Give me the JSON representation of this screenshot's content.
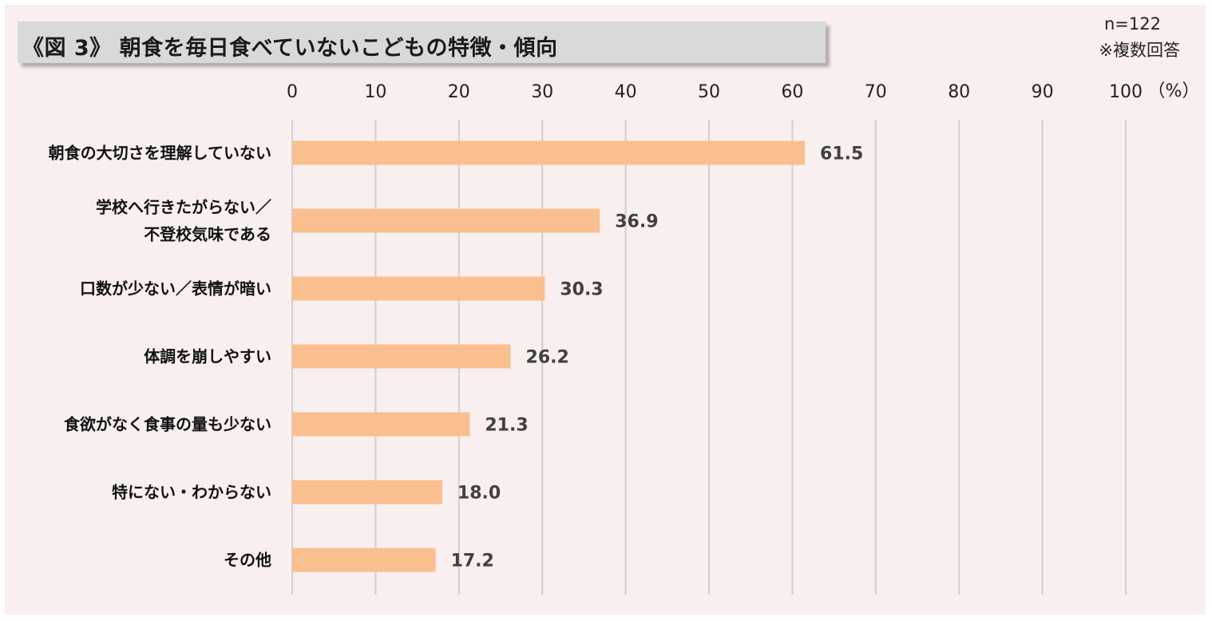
{
  "header": {
    "title": "《図 3》 朝食を毎日食べていないこどもの特徴・傾向",
    "sample_size": "n=122",
    "note": "※複数回答"
  },
  "chart_data": {
    "type": "bar",
    "orientation": "horizontal",
    "title": "《図 3》 朝食を毎日食べていないこどもの特徴・傾向",
    "unit_label": "（%）",
    "xlim": [
      0,
      100
    ],
    "ticks": [
      0,
      10,
      20,
      30,
      40,
      50,
      60,
      70,
      80,
      90,
      100
    ],
    "grid": true,
    "bar_color": "#f9bf8f",
    "categories": [
      [
        "朝食の大切さを理解していない"
      ],
      [
        "学校へ行きたがらない／",
        "不登校気味である"
      ],
      [
        "口数が少ない／表情が暗い"
      ],
      [
        "体調を崩しやすい"
      ],
      [
        "食欲がなく食事の量も少ない"
      ],
      [
        "特にない・わからない"
      ],
      [
        "その他"
      ]
    ],
    "values": [
      61.5,
      36.9,
      30.3,
      26.2,
      21.3,
      18.0,
      17.2
    ],
    "value_labels": [
      "61.5",
      "36.9",
      "30.3",
      "26.2",
      "21.3",
      "18.0",
      "17.2"
    ]
  }
}
